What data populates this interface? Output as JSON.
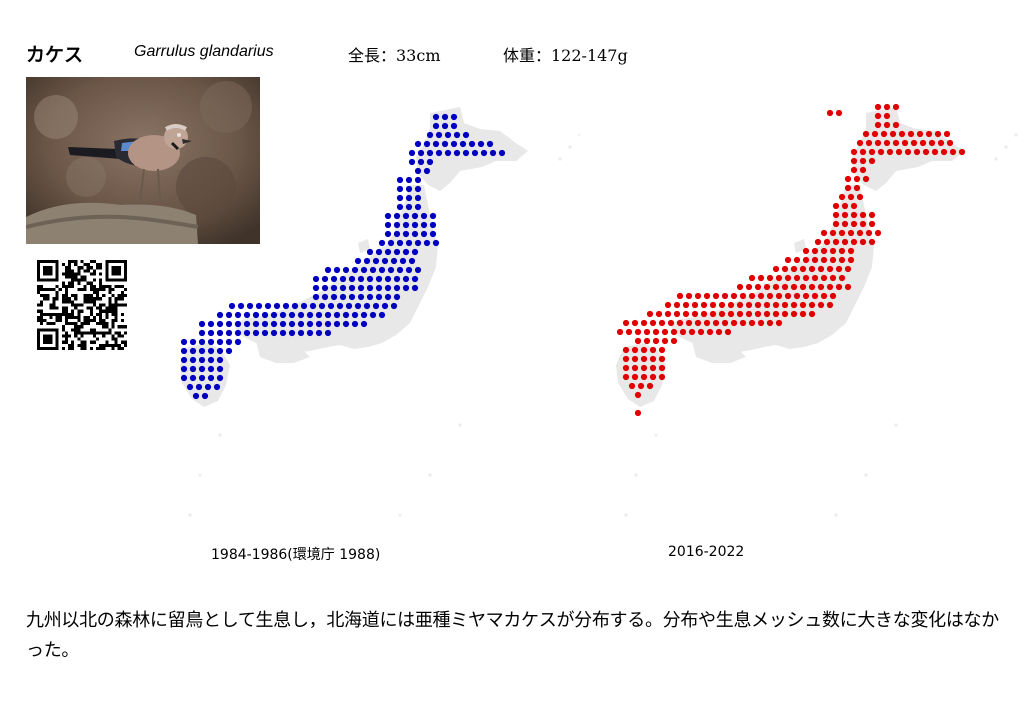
{
  "species": {
    "japanese_name": "カケス",
    "scientific_name": "Garrulus glandarius",
    "length": "全長：33cm",
    "weight": "体重：122-147g"
  },
  "maps": [
    {
      "period": "1984-1986(環境庁 1988)",
      "dot_color": "#0000c0"
    },
    {
      "period": "2016-2022",
      "dot_color": "#e00000"
    }
  ],
  "description": "九州以北の森林に留鳥として生息し，北海道には亜種ミヤマカケスが分布する。分布や生息メッシュ数に大きな変化はなかった。",
  "colors": {
    "land": "#e8e8e8",
    "text": "#000000"
  }
}
